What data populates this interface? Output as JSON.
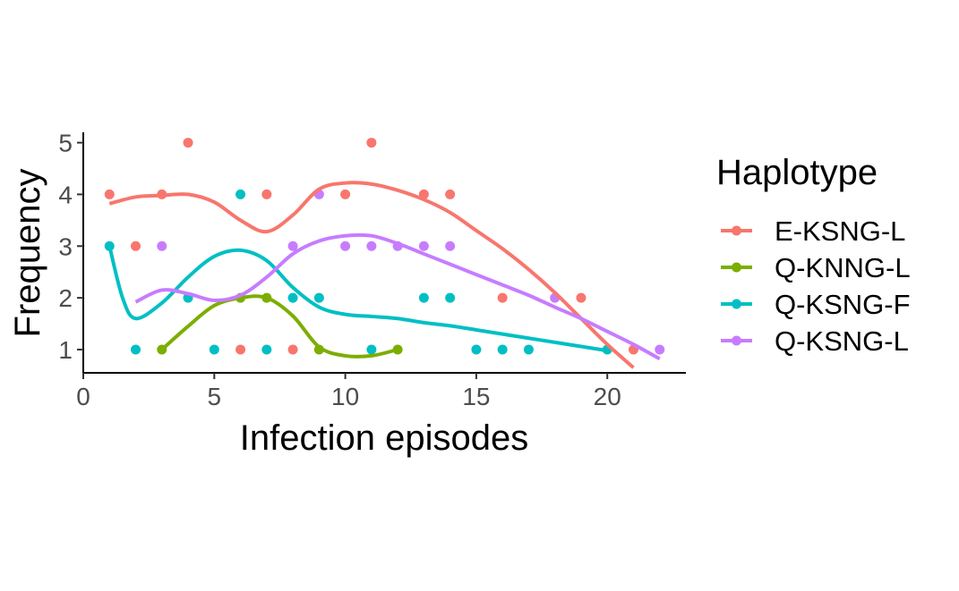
{
  "chart_data": {
    "type": "scatter",
    "title": "",
    "xlabel": "Infection episodes",
    "ylabel": "Frequency",
    "xlim": [
      0,
      23
    ],
    "ylim": [
      0.55,
      5.2
    ],
    "x_ticks": [
      0,
      5,
      10,
      15,
      20
    ],
    "y_ticks": [
      1,
      2,
      3,
      4,
      5
    ],
    "x_tick_labels": [
      "0",
      "5",
      "10",
      "15",
      "20"
    ],
    "y_tick_labels": [
      "1",
      "2",
      "3",
      "4",
      "5"
    ],
    "grid": false,
    "legend_position": "right",
    "legend_title": "Haplotype",
    "series": [
      {
        "name": "E-KSNG-L",
        "color": "#F8766D",
        "points": [
          [
            1,
            4
          ],
          [
            2,
            3
          ],
          [
            3,
            4
          ],
          [
            4,
            5
          ],
          [
            6,
            1
          ],
          [
            7,
            4
          ],
          [
            8,
            1
          ],
          [
            10,
            4
          ],
          [
            11,
            5
          ],
          [
            13,
            4
          ],
          [
            14,
            4
          ],
          [
            16,
            2
          ],
          [
            19,
            2
          ],
          [
            21,
            1
          ]
        ],
        "smooth": [
          [
            1,
            3.82
          ],
          [
            2,
            3.95
          ],
          [
            3,
            3.98
          ],
          [
            4,
            4.0
          ],
          [
            5,
            3.85
          ],
          [
            6,
            3.5
          ],
          [
            7,
            3.28
          ],
          [
            8,
            3.6
          ],
          [
            9,
            4.1
          ],
          [
            10,
            4.22
          ],
          [
            11,
            4.2
          ],
          [
            12,
            4.08
          ],
          [
            13,
            3.9
          ],
          [
            14,
            3.65
          ],
          [
            15,
            3.3
          ],
          [
            16,
            2.95
          ],
          [
            17,
            2.55
          ],
          [
            18,
            2.1
          ],
          [
            19,
            1.6
          ],
          [
            20,
            1.1
          ],
          [
            21,
            0.65
          ]
        ]
      },
      {
        "name": "Q-KNNG-L",
        "color": "#7CAE00",
        "points": [
          [
            3,
            1
          ],
          [
            6,
            2
          ],
          [
            7,
            2
          ],
          [
            9,
            1
          ],
          [
            12,
            1
          ]
        ],
        "smooth": [
          [
            3,
            1.0
          ],
          [
            4,
            1.45
          ],
          [
            5,
            1.85
          ],
          [
            6,
            2.0
          ],
          [
            7,
            2.0
          ],
          [
            8,
            1.65
          ],
          [
            9,
            1.05
          ],
          [
            10,
            0.88
          ],
          [
            11,
            0.88
          ],
          [
            12,
            1.0
          ]
        ]
      },
      {
        "name": "Q-KSNG-F",
        "color": "#00BFC4",
        "points": [
          [
            1,
            3
          ],
          [
            2,
            1
          ],
          [
            4,
            2
          ],
          [
            5,
            1
          ],
          [
            6,
            4
          ],
          [
            7,
            1
          ],
          [
            8,
            2
          ],
          [
            9,
            2
          ],
          [
            11,
            1
          ],
          [
            13,
            2
          ],
          [
            14,
            2
          ],
          [
            15,
            1
          ],
          [
            16,
            1
          ],
          [
            17,
            1
          ],
          [
            20,
            1
          ]
        ],
        "smooth": [
          [
            1,
            3.0
          ],
          [
            1.5,
            2.0
          ],
          [
            2,
            1.6
          ],
          [
            3,
            1.9
          ],
          [
            4,
            2.4
          ],
          [
            5,
            2.8
          ],
          [
            6,
            2.92
          ],
          [
            7,
            2.72
          ],
          [
            8,
            2.2
          ],
          [
            9,
            1.82
          ],
          [
            10,
            1.68
          ],
          [
            11,
            1.64
          ],
          [
            12,
            1.6
          ],
          [
            13,
            1.52
          ],
          [
            14,
            1.46
          ],
          [
            15,
            1.38
          ],
          [
            16,
            1.3
          ],
          [
            17,
            1.22
          ],
          [
            18,
            1.14
          ],
          [
            19,
            1.06
          ],
          [
            20,
            0.98
          ]
        ]
      },
      {
        "name": "Q-KSNG-L",
        "color": "#C77CFF",
        "points": [
          [
            3,
            3
          ],
          [
            8,
            3
          ],
          [
            9,
            4
          ],
          [
            10,
            3
          ],
          [
            11,
            3
          ],
          [
            12,
            3
          ],
          [
            13,
            3
          ],
          [
            14,
            3
          ],
          [
            18,
            2
          ],
          [
            22,
            1
          ]
        ],
        "smooth": [
          [
            2,
            1.92
          ],
          [
            3,
            2.15
          ],
          [
            4,
            2.08
          ],
          [
            5,
            1.95
          ],
          [
            6,
            2.05
          ],
          [
            7,
            2.4
          ],
          [
            8,
            2.85
          ],
          [
            9,
            3.1
          ],
          [
            10,
            3.2
          ],
          [
            11,
            3.2
          ],
          [
            12,
            3.05
          ],
          [
            13,
            2.85
          ],
          [
            14,
            2.65
          ],
          [
            15,
            2.45
          ],
          [
            16,
            2.25
          ],
          [
            17,
            2.05
          ],
          [
            18,
            1.82
          ],
          [
            19,
            1.6
          ],
          [
            20,
            1.35
          ],
          [
            21,
            1.1
          ],
          [
            22,
            0.82
          ]
        ]
      }
    ]
  }
}
